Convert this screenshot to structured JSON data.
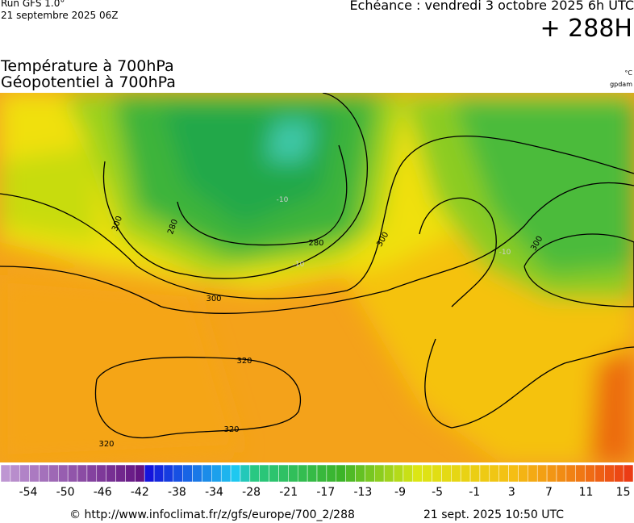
{
  "header": {
    "run": "Run GFS 1.0°",
    "run_date": "21 septembre 2025 06Z",
    "valid": "Echéance : vendredi 3 octobre 2025 6h UTC",
    "lead": "+ 288H"
  },
  "titles": {
    "temperature": "Température à 700hPa",
    "geopotential": "Géopotentiel à 700hPa",
    "temp_unit": "°C",
    "geo_unit": "gpdam"
  },
  "map": {
    "contour_labels": [
      "300",
      "280",
      "280",
      "300",
      "300",
      "300",
      "320",
      "320",
      "320",
      "-10",
      "-10",
      "-10"
    ]
  },
  "colorbar": {
    "labels": [
      "-54",
      "-50",
      "-46",
      "-42",
      "-38",
      "-34",
      "-28",
      "-21",
      "-17",
      "-13",
      "-9",
      "-5",
      "-1",
      "3",
      "7",
      "11",
      "15"
    ]
  },
  "footer": {
    "url": "© http://www.infoclimat.fr/z/gfs/europe/700_2/288",
    "generated": "21 sept. 2025 10:50 UTC"
  }
}
